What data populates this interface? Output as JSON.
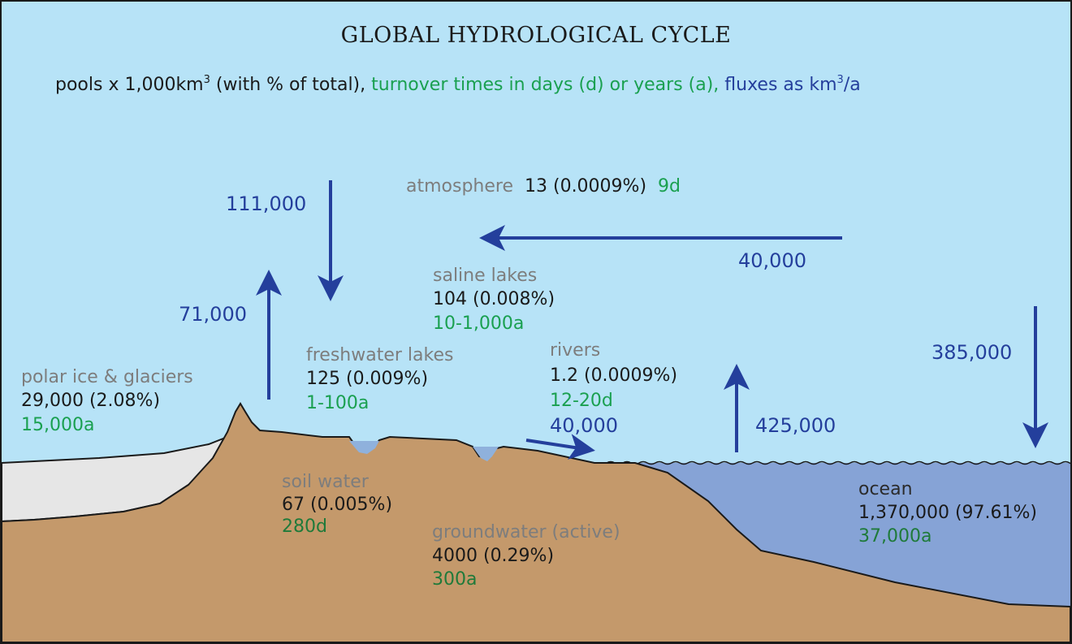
{
  "title": "GLOBAL HYDROLOGICAL CYCLE",
  "subtitle": {
    "pools": "pools x 1,000km",
    "pools_sup": "3",
    "pools_tail": " (with % of total),",
    "turnover": " turnover times in days (d) or years (a),",
    "fluxes": " fluxes as km",
    "fluxes_sup": "3",
    "fluxes_tail": "/a"
  },
  "pools": {
    "atmosphere": {
      "name": "atmosphere",
      "volume": "13 (0.0009%)",
      "turnover": "9d"
    },
    "saline_lakes": {
      "name": "saline lakes",
      "volume": "104 (0.008%)",
      "turnover": "10-1,000a"
    },
    "freshwater_lakes": {
      "name": "freshwater lakes",
      "volume": "125 (0.009%)",
      "turnover": "1-100a"
    },
    "rivers": {
      "name": "rivers",
      "volume": "1.2 (0.0009%)",
      "turnover": "12-20d"
    },
    "polar_ice": {
      "name": "polar ice & glaciers",
      "volume": "29,000 (2.08%)",
      "turnover": "15,000a"
    },
    "soil_water": {
      "name": "soil water",
      "volume": "67 (0.005%)",
      "turnover": "280d"
    },
    "groundwater": {
      "name": "groundwater (active)",
      "volume": "4000 (0.29%)",
      "turnover": "300a"
    },
    "ocean": {
      "name": "ocean",
      "volume": "1,370,000 (97.61%)",
      "turnover": "37,000a"
    }
  },
  "fluxes": {
    "land_precipitation": "111,000",
    "land_evaporation": "71,000",
    "atmospheric_transport": "40,000",
    "ocean_precipitation": "385,000",
    "ocean_evaporation": "425,000",
    "river_runoff": "40,000"
  },
  "colors": {
    "sky": "#b7e3f7",
    "land": "#c4996b",
    "ocean": "#86a3d6",
    "ice": "#e6e6e6",
    "lake": "#8fb1dc",
    "arrow": "#243f9c"
  }
}
